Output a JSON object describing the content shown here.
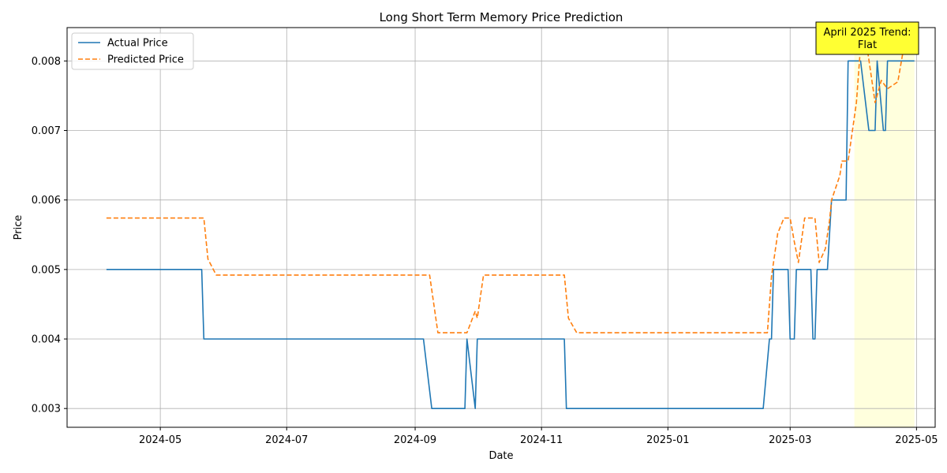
{
  "chart_data": {
    "type": "line",
    "title": "Long Short Term Memory Price Prediction",
    "xlabel": "Date",
    "ylabel": "Price",
    "xlim": [
      "2024-03-17",
      "2025-05-10"
    ],
    "ylim": [
      0.00273,
      0.00848
    ],
    "grid": true,
    "legend_position": "top-left",
    "x_ticks": [
      {
        "date": "2024-05-01",
        "label": "2024-05"
      },
      {
        "date": "2024-07-01",
        "label": "2024-07"
      },
      {
        "date": "2024-09-01",
        "label": "2024-09"
      },
      {
        "date": "2024-11-01",
        "label": "2024-11"
      },
      {
        "date": "2025-01-01",
        "label": "2025-01"
      },
      {
        "date": "2025-03-01",
        "label": "2025-03"
      },
      {
        "date": "2025-05-01",
        "label": "2025-05"
      }
    ],
    "y_ticks": [
      {
        "value": 0.003,
        "label": "0.003"
      },
      {
        "value": 0.004,
        "label": "0.004"
      },
      {
        "value": 0.005,
        "label": "0.005"
      },
      {
        "value": 0.006,
        "label": "0.006"
      },
      {
        "value": 0.007,
        "label": "0.007"
      },
      {
        "value": 0.008,
        "label": "0.008"
      }
    ],
    "series": [
      {
        "name": "Actual Price",
        "color": "#1f77b4",
        "dash": "solid",
        "points": [
          [
            "2024-04-05",
            0.005
          ],
          [
            "2024-05-21",
            0.005
          ],
          [
            "2024-05-22",
            0.004
          ],
          [
            "2024-09-05",
            0.004
          ],
          [
            "2024-09-09",
            0.003
          ],
          [
            "2024-09-25",
            0.003
          ],
          [
            "2024-09-26",
            0.004
          ],
          [
            "2024-09-30",
            0.003
          ],
          [
            "2024-10-01",
            0.004
          ],
          [
            "2024-11-12",
            0.004
          ],
          [
            "2024-11-13",
            0.003
          ],
          [
            "2025-02-16",
            0.003
          ],
          [
            "2025-02-19",
            0.004
          ],
          [
            "2025-02-20",
            0.004
          ],
          [
            "2025-02-21",
            0.005
          ],
          [
            "2025-02-28",
            0.005
          ],
          [
            "2025-02-29",
            0.004
          ],
          [
            "2025-03-03",
            0.004
          ],
          [
            "2025-03-04",
            0.005
          ],
          [
            "2025-03-11",
            0.005
          ],
          [
            "2025-03-12",
            0.004
          ],
          [
            "2025-03-13",
            0.004
          ],
          [
            "2025-03-14",
            0.005
          ],
          [
            "2025-03-19",
            0.005
          ],
          [
            "2025-03-21",
            0.006
          ],
          [
            "2025-03-28",
            0.006
          ],
          [
            "2025-03-29",
            0.008
          ],
          [
            "2025-04-04",
            0.008
          ],
          [
            "2025-04-08",
            0.007
          ],
          [
            "2025-04-11",
            0.007
          ],
          [
            "2025-04-12",
            0.008
          ],
          [
            "2025-04-15",
            0.007
          ],
          [
            "2025-04-16",
            0.007
          ],
          [
            "2025-04-17",
            0.008
          ],
          [
            "2025-04-30",
            0.008
          ]
        ]
      },
      {
        "name": "Predicted Price",
        "color": "#ff7f0e",
        "dash": "dashed",
        "points": [
          [
            "2024-04-05",
            0.00574
          ],
          [
            "2024-05-22",
            0.00574
          ],
          [
            "2024-05-24",
            0.00515
          ],
          [
            "2024-05-28",
            0.00492
          ],
          [
            "2024-09-08",
            0.00492
          ],
          [
            "2024-09-12",
            0.00409
          ],
          [
            "2024-09-26",
            0.00409
          ],
          [
            "2024-09-30",
            0.0044
          ],
          [
            "2024-10-01",
            0.0043
          ],
          [
            "2024-10-04",
            0.00492
          ],
          [
            "2024-11-12",
            0.00492
          ],
          [
            "2024-11-14",
            0.0043
          ],
          [
            "2024-11-18",
            0.00409
          ],
          [
            "2025-02-18",
            0.00409
          ],
          [
            "2025-02-20",
            0.0049
          ],
          [
            "2025-02-23",
            0.00552
          ],
          [
            "2025-02-26",
            0.00574
          ],
          [
            "2025-03-01",
            0.00574
          ],
          [
            "2025-03-03",
            0.0054
          ],
          [
            "2025-03-05",
            0.0051
          ],
          [
            "2025-03-08",
            0.00574
          ],
          [
            "2025-03-13",
            0.00574
          ],
          [
            "2025-03-15",
            0.0051
          ],
          [
            "2025-03-18",
            0.0053
          ],
          [
            "2025-03-20",
            0.0057
          ],
          [
            "2025-03-21",
            0.006
          ],
          [
            "2025-03-25",
            0.00635
          ],
          [
            "2025-03-26",
            0.00656
          ],
          [
            "2025-03-29",
            0.00656
          ],
          [
            "2025-04-02",
            0.0074
          ],
          [
            "2025-04-04",
            0.00822
          ],
          [
            "2025-04-07",
            0.00822
          ],
          [
            "2025-04-11",
            0.0074
          ],
          [
            "2025-04-14",
            0.00772
          ],
          [
            "2025-04-17",
            0.0076
          ],
          [
            "2025-04-22",
            0.0077
          ],
          [
            "2025-04-25",
            0.00822
          ],
          [
            "2025-04-30",
            0.00822
          ]
        ]
      }
    ],
    "highlight": {
      "start": "2025-04-01",
      "end": "2025-04-30",
      "color": "#ffffdd"
    },
    "annotation": {
      "lines": [
        "April 2025 Trend:",
        "Flat"
      ],
      "background": "#ffff33"
    }
  }
}
